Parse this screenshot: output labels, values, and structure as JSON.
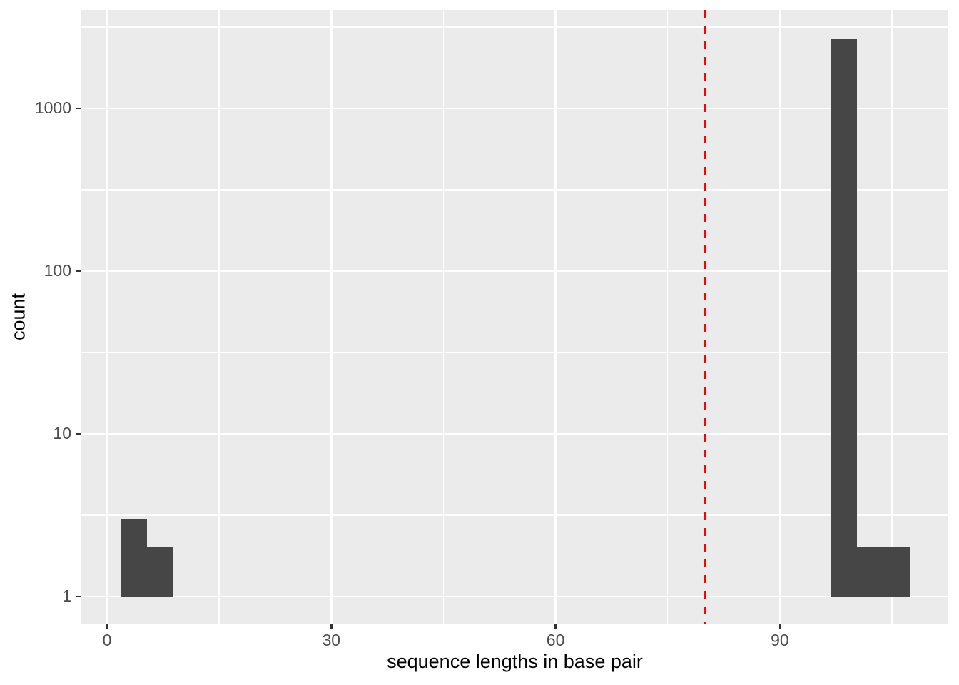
{
  "chart_data": {
    "type": "bar",
    "subtype": "histogram",
    "title": "",
    "xlabel": "sequence lengths in base pair",
    "ylabel": "count",
    "y_scale": "log10",
    "xlim": [
      -3.44,
      112.54
    ],
    "ylim": [
      0.674,
      4027
    ],
    "x_ticks": [
      {
        "v": 0,
        "label": "0"
      },
      {
        "v": 30,
        "label": "30"
      },
      {
        "v": 60,
        "label": "60"
      },
      {
        "v": 90,
        "label": "90"
      }
    ],
    "x_minor_ticks": [
      15,
      45,
      75,
      105
    ],
    "y_ticks": [
      {
        "v": 1,
        "label": "1"
      },
      {
        "v": 10,
        "label": "10"
      },
      {
        "v": 100,
        "label": "100"
      },
      {
        "v": 1000,
        "label": "1000"
      }
    ],
    "y_minor_ticks": [
      3.162,
      31.62,
      316.2,
      3162
    ],
    "bins": [
      {
        "x0": 1.85,
        "x1": 5.35,
        "count": 3
      },
      {
        "x0": 5.35,
        "x1": 8.85,
        "count": 2
      },
      {
        "x0": 96.85,
        "x1": 100.35,
        "count": 2700
      },
      {
        "x0": 100.35,
        "x1": 103.85,
        "count": 2
      },
      {
        "x0": 103.85,
        "x1": 107.35,
        "count": 2
      }
    ],
    "bar_baseline": 1,
    "vline": {
      "x": 80,
      "style": "dashed",
      "color": "#FF0000"
    },
    "grid": true,
    "legend": false
  },
  "colors": {
    "panel_bg": "#EBEBEB",
    "grid_major": "#FFFFFF",
    "grid_minor": "#FFFFFF",
    "bar_fill": "#464646",
    "tick_mark": "#333333",
    "tick_label": "#4D4D4D",
    "axis_title": "#000000",
    "vline": "#FF0000"
  }
}
